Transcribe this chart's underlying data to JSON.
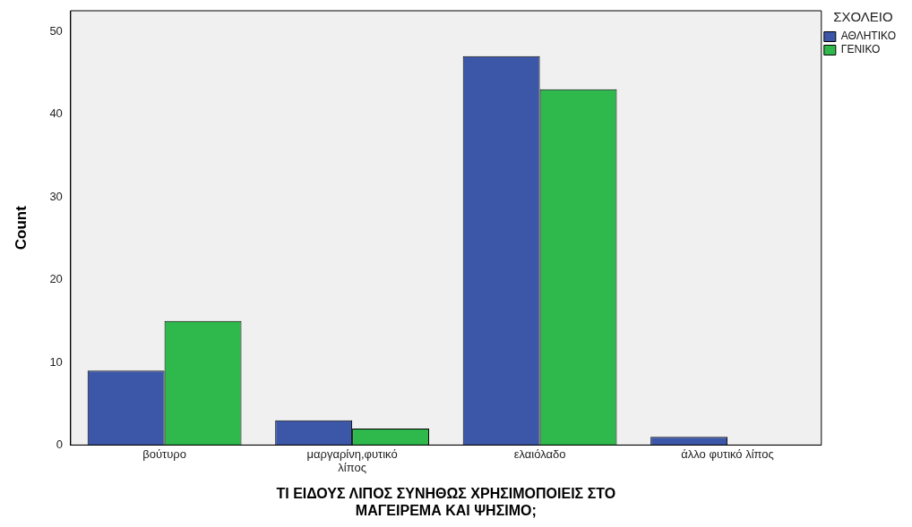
{
  "chart_data": {
    "type": "bar",
    "xlabel": "ΤΙ ΕΙΔΟΥΣ ΛΙΠΟΣ ΣΥΝΗΘΩΣ ΧΡΗΣΙΜΟΠΟΙΕΙΣ ΣΤΟ ΜΑΓΕΙΡΕΜΑ ΚΑΙ ΨΗΣΙΜΟ;",
    "ylabel": "Count",
    "legend_title": "ΣΧΟΛΕΙΟ",
    "categories": [
      "βούτυρο",
      "μαργαρίνη,φυτικό λίπος",
      "ελαιόλαδο",
      "άλλο φυτικό λίπος"
    ],
    "series": [
      {
        "name": "ΑΘΛΗΤΙΚΟ",
        "color": "#3c57a8",
        "values": [
          9,
          3,
          47,
          1
        ]
      },
      {
        "name": "ΓΕΝΙΚΟ",
        "color": "#2fb84c",
        "values": [
          15,
          2,
          43,
          0
        ]
      }
    ],
    "ylim": [
      0,
      52.5
    ],
    "yticks": [
      0,
      10,
      20,
      30,
      40,
      50
    ],
    "grid": false,
    "legend": "top right"
  }
}
